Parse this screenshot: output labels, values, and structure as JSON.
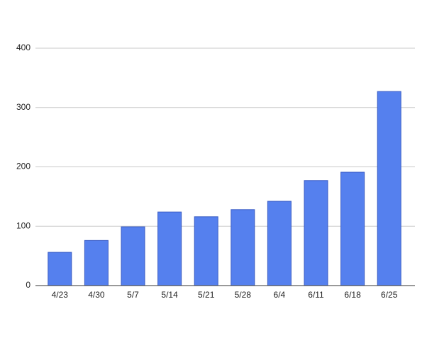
{
  "chart_data": {
    "type": "bar",
    "categories": [
      "4/23",
      "4/30",
      "5/7",
      "5/14",
      "5/21",
      "5/28",
      "6/4",
      "6/11",
      "6/18",
      "6/25"
    ],
    "values": [
      56,
      76,
      99,
      124,
      116,
      128,
      142,
      177,
      191,
      327
    ],
    "color": "#5580ee",
    "ylim": [
      0,
      400
    ],
    "yticks": [
      0,
      100,
      200,
      300,
      400
    ],
    "grid": true
  }
}
